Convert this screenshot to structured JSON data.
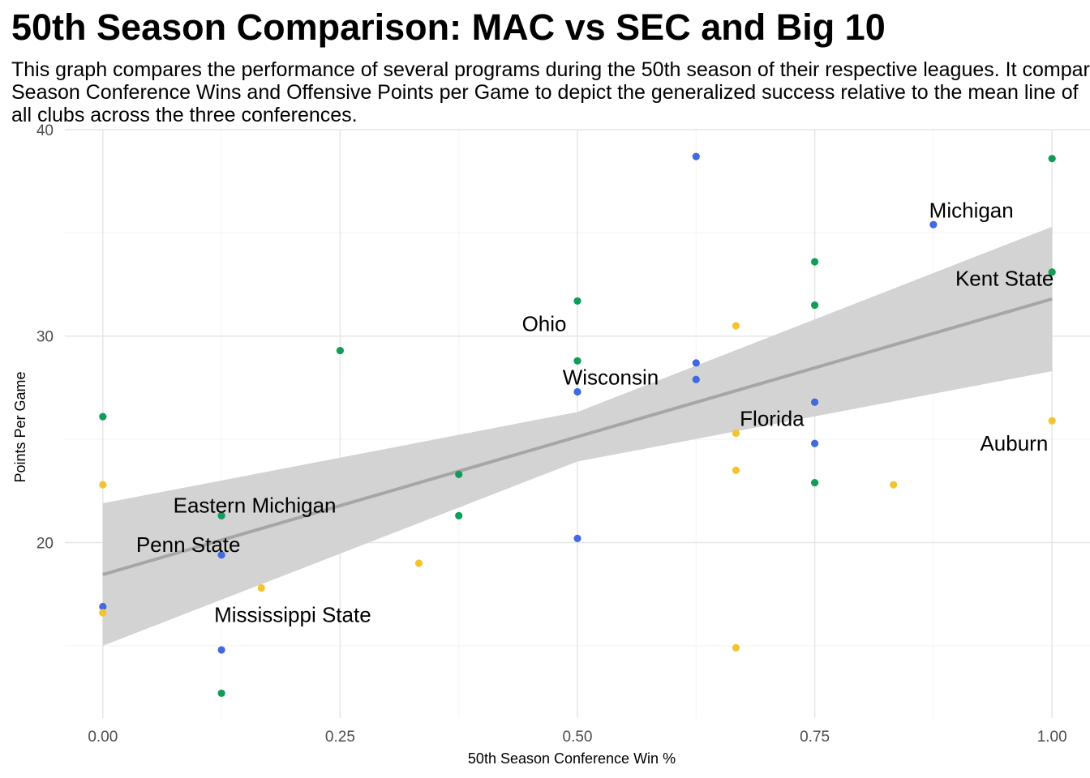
{
  "chart_data": {
    "type": "scatter",
    "title": "50th Season Comparison: MAC vs SEC and Big 10",
    "subtitle": [
      "This graph compares the performance of several programs during the 50th season of their respective leagues. It compares",
      "Season Conference Wins and Offensive Points per Game to depict the generalized success relative to the mean line of",
      "all clubs across the three conferences."
    ],
    "xlabel": "50th Season Conference Win %",
    "ylabel": "Points Per Game",
    "xlim": [
      -0.04,
      1.04
    ],
    "ylim": [
      11.5,
      40
    ],
    "xticks": [
      0,
      0.25,
      0.5,
      0.75,
      1
    ],
    "xtick_labels": [
      "0.00",
      "0.25",
      "0.50",
      "0.75",
      "1.00"
    ],
    "yticks": [
      20,
      30,
      40
    ],
    "ytick_labels": [
      "20",
      "30",
      "40"
    ],
    "grid": true,
    "legend": "none",
    "series": [
      {
        "color": "#4169E1",
        "points": [
          {
            "x": 0.625,
            "y": 38.7
          },
          {
            "x": 0.875,
            "y": 35.4
          },
          {
            "x": 0.625,
            "y": 28.7
          },
          {
            "x": 0.625,
            "y": 27.9
          },
          {
            "x": 0.5,
            "y": 27.3
          },
          {
            "x": 0.75,
            "y": 26.8
          },
          {
            "x": 0.75,
            "y": 24.8
          },
          {
            "x": 0.5,
            "y": 20.2
          },
          {
            "x": 0.125,
            "y": 19.4
          },
          {
            "x": 0.0,
            "y": 16.9
          },
          {
            "x": 0.125,
            "y": 14.8
          }
        ]
      },
      {
        "color": "#0F9D58",
        "points": [
          {
            "x": 1.0,
            "y": 38.6
          },
          {
            "x": 0.75,
            "y": 33.6
          },
          {
            "x": 1.0,
            "y": 33.1
          },
          {
            "x": 0.5,
            "y": 31.7
          },
          {
            "x": 0.75,
            "y": 31.5
          },
          {
            "x": 0.25,
            "y": 29.3
          },
          {
            "x": 0.5,
            "y": 28.8
          },
          {
            "x": 0.0,
            "y": 26.1
          },
          {
            "x": 0.375,
            "y": 23.3
          },
          {
            "x": 0.75,
            "y": 22.9
          },
          {
            "x": 0.125,
            "y": 21.3
          },
          {
            "x": 0.375,
            "y": 21.3
          },
          {
            "x": 0.125,
            "y": 12.7
          }
        ]
      },
      {
        "color": "#F4C430",
        "points": [
          {
            "x": 0.667,
            "y": 30.5
          },
          {
            "x": 1.0,
            "y": 25.9
          },
          {
            "x": 0.667,
            "y": 25.3
          },
          {
            "x": 0.667,
            "y": 23.5
          },
          {
            "x": 0.833,
            "y": 22.8
          },
          {
            "x": 0.0,
            "y": 22.8
          },
          {
            "x": 0.333,
            "y": 19.0
          },
          {
            "x": 0.167,
            "y": 17.8
          },
          {
            "x": 0.0,
            "y": 16.6
          },
          {
            "x": 0.667,
            "y": 14.9
          }
        ]
      }
    ],
    "annotations": [
      {
        "text": "Michigan",
        "x": 0.915,
        "y": 36.1
      },
      {
        "text": "Kent State",
        "x": 0.95,
        "y": 32.8
      },
      {
        "text": "Ohio",
        "x": 0.465,
        "y": 30.6
      },
      {
        "text": "Wisconsin",
        "x": 0.535,
        "y": 28.0
      },
      {
        "text": "Florida",
        "x": 0.705,
        "y": 26.0
      },
      {
        "text": "Auburn",
        "x": 0.96,
        "y": 24.8
      },
      {
        "text": "Eastern Michigan",
        "x": 0.16,
        "y": 21.8
      },
      {
        "text": "Penn State",
        "x": 0.09,
        "y": 19.9
      },
      {
        "text": "Mississippi State",
        "x": 0.2,
        "y": 16.5
      }
    ],
    "trend": {
      "x": [
        0,
        1
      ],
      "y": [
        18.45,
        31.8
      ],
      "ci_lower": [
        15.0,
        28.3
      ],
      "ci_upper": [
        21.9,
        35.3
      ],
      "line_color": "#A6A6A6",
      "band_color": "#D3D3D3"
    }
  }
}
